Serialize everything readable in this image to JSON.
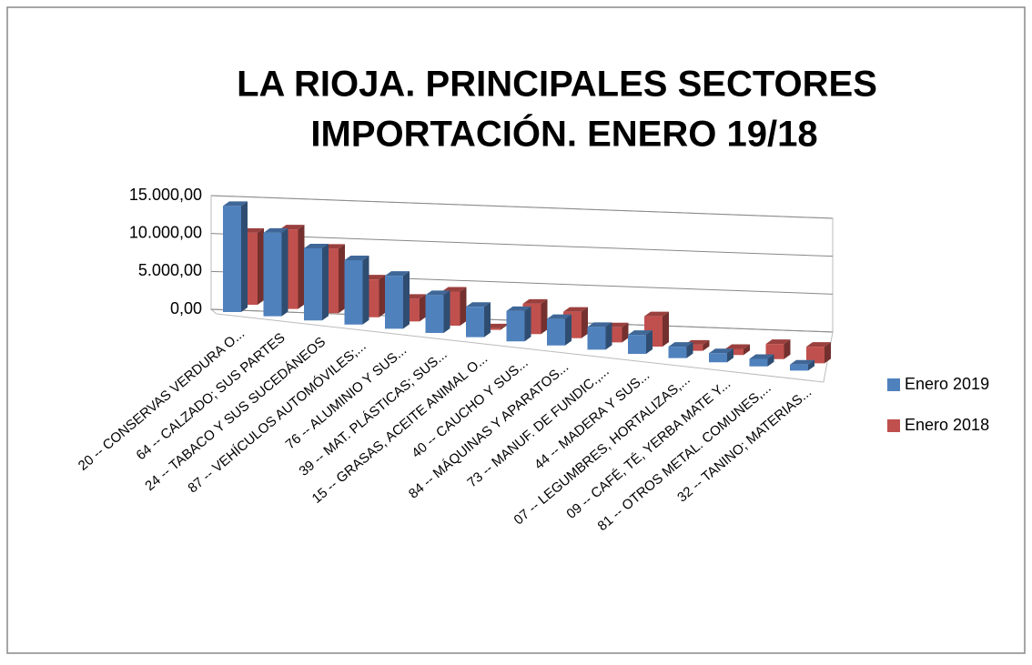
{
  "chart_data": {
    "type": "bar3d",
    "title": [
      "LA RIOJA. PRINCIPALES SECTORES",
      "IMPORTACIÓN. ENERO 19/18"
    ],
    "categories": [
      "20 -- CONSERVAS VERDURA O...",
      "64 -- CALZADO; SUS PARTES",
      "24 -- TABACO Y SUS SUCEDÁNEOS",
      "87 -- VEHÍCULOS AUTOMÓVILES;...",
      "76 -- ALUMINIO Y SUS...",
      "39 -- MAT. PLÁSTICAS; SUS...",
      "15 -- GRASAS, ACEITE ANIMAL O...",
      "40 -- CAUCHO Y SUS...",
      "84 -- MÁQUINAS Y APARATOS...",
      "73 -- MANUF. DE FUNDIC.,...",
      "44 -- MADERA Y SUS...",
      "07 -- LEGUMBRES, HORTALIZAS,...",
      "09 -- CAFÉ, TÉ, YERBA MATE Y...",
      "81 -- OTROS METAL. COMUNES,...",
      "32 -- TANINO; MATERIAS..."
    ],
    "series": [
      {
        "name": "Enero 2019",
        "color": "#4f81bd",
        "values": [
          14000,
          11000,
          9500,
          8500,
          7000,
          5000,
          4000,
          4000,
          3500,
          3000,
          2500,
          1500,
          1200,
          1000,
          800
        ]
      },
      {
        "name": "Enero 2018",
        "color": "#c0504d",
        "values": [
          9500,
          10500,
          8500,
          5000,
          3000,
          4500,
          200,
          4000,
          3500,
          2000,
          4000,
          800,
          800,
          2000,
          2200
        ]
      }
    ],
    "ylim": [
      0,
      15000
    ],
    "yticks": [
      {
        "value": 0,
        "label": "0,00"
      },
      {
        "value": 5000,
        "label": "5.000,00"
      },
      {
        "value": 10000,
        "label": "10.000,00"
      },
      {
        "value": 15000,
        "label": "15.000,00"
      }
    ],
    "grid": true,
    "legend": "right"
  }
}
